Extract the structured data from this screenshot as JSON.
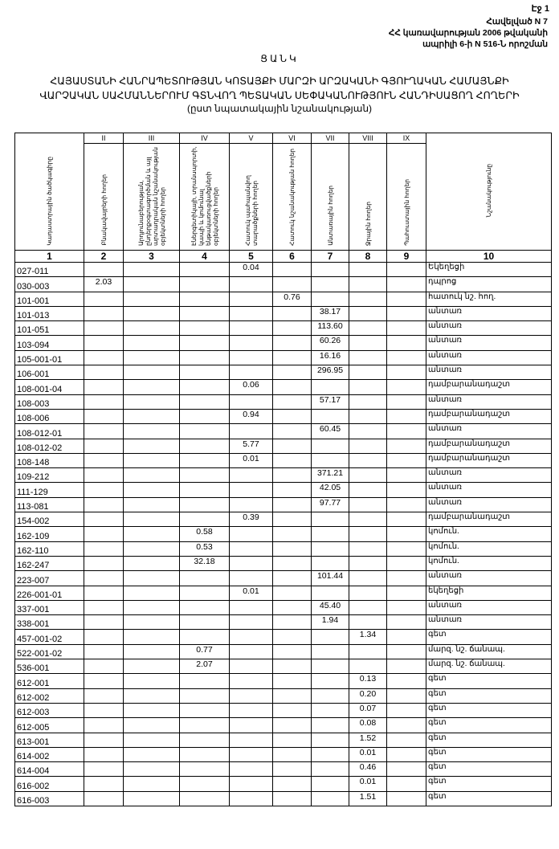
{
  "page_label": "Էջ 1",
  "annex": [
    "Հավելված N 7",
    "ՀՀ կառավարության 2006 թվականի",
    "ապրիլի 6-ի N 516-Ն որոշման"
  ],
  "doc_title": "ՑԱՆԿ",
  "heading": [
    "ՀԱՅԱՍՏԱՆԻ ՀԱՆՐԱՊԵՏՈՒԹՅԱՆ ԿՈՏԱՅՔԻ ՄԱՐԶԻ ԱՐԶԱԿԱՆԻ ԳՅՈՒՂԱԿԱՆ ՀԱՄԱՅՆՔԻ",
    "ՎԱՐՉԱԿԱՆ ՍԱՀՄԱՆՆԵՐՈՒՄ ԳՏՆՎՈՂ ՊԵՏԱԿԱՆ ՍԵՓԱԿԱՆՈՒԹՅՈՒՆ ՀԱՆԴԻՍԱՑՈՂ ՀՈՂԵՐԻ"
  ],
  "subheading": "(ըստ նպատակային նշանակության)",
  "table": {
    "roman": [
      "II",
      "III",
      "IV",
      "V",
      "VI",
      "VII",
      "VIII",
      "IX"
    ],
    "headers": [
      "Կադաստրային ծածկագիրը",
      "Բնակավայրերի հողեր",
      "Արդյունաբերության, ընդերքօգտագործման և այլ արտադրական նշանակության օբյեկտների հողեր",
      "Էներգետիկայի, տրանսպորտի, կապի և կոմունալ ենթակառուցվածքների օբյեկտների հողեր",
      "Հատուկ պահպանվող տարածքների հողեր",
      "Հատուկ նշանակության հողեր",
      "Անտառային հողեր",
      "Ջրային հողեր",
      "Պահուստային հողեր",
      "Նշանակությունը"
    ],
    "numbers": [
      "1",
      "2",
      "3",
      "4",
      "5",
      "6",
      "7",
      "8",
      "9",
      "10"
    ],
    "rows": [
      {
        "code": "027-011",
        "v": [
          "",
          "",
          "",
          "0.04",
          "",
          "",
          "",
          ""
        ],
        "purpose": "Եկեղեցի"
      },
      {
        "code": "030-003",
        "v": [
          "2.03",
          "",
          "",
          "",
          "",
          "",
          "",
          ""
        ],
        "purpose": "դպրոց"
      },
      {
        "code": "101-001",
        "v": [
          "",
          "",
          "",
          "",
          "0.76",
          "",
          "",
          ""
        ],
        "purpose": "հատուկ նշ. հող."
      },
      {
        "code": "101-013",
        "v": [
          "",
          "",
          "",
          "",
          "",
          "38.17",
          "",
          ""
        ],
        "purpose": "անտառ"
      },
      {
        "code": "101-051",
        "v": [
          "",
          "",
          "",
          "",
          "",
          "113.60",
          "",
          ""
        ],
        "purpose": "անտառ"
      },
      {
        "code": "103-094",
        "v": [
          "",
          "",
          "",
          "",
          "",
          "60.26",
          "",
          ""
        ],
        "purpose": "անտառ"
      },
      {
        "code": "105-001-01",
        "v": [
          "",
          "",
          "",
          "",
          "",
          "16.16",
          "",
          ""
        ],
        "purpose": "անտառ"
      },
      {
        "code": "106-001",
        "v": [
          "",
          "",
          "",
          "",
          "",
          "296.95",
          "",
          ""
        ],
        "purpose": "անտառ"
      },
      {
        "code": "108-001-04",
        "v": [
          "",
          "",
          "",
          "0.06",
          "",
          "",
          "",
          ""
        ],
        "purpose": "դամբարանադաշտ"
      },
      {
        "code": "108-003",
        "v": [
          "",
          "",
          "",
          "",
          "",
          "57.17",
          "",
          ""
        ],
        "purpose": "անտառ"
      },
      {
        "code": "108-006",
        "v": [
          "",
          "",
          "",
          "0.94",
          "",
          "",
          "",
          ""
        ],
        "purpose": "դամբարանադաշտ"
      },
      {
        "code": "108-012-01",
        "v": [
          "",
          "",
          "",
          "",
          "",
          "60.45",
          "",
          ""
        ],
        "purpose": "անտառ"
      },
      {
        "code": "108-012-02",
        "v": [
          "",
          "",
          "",
          "5.77",
          "",
          "",
          "",
          ""
        ],
        "purpose": "դամբարանադաշտ"
      },
      {
        "code": "108-148",
        "v": [
          "",
          "",
          "",
          "0.01",
          "",
          "",
          "",
          ""
        ],
        "purpose": "դամբարանադաշտ"
      },
      {
        "code": "109-212",
        "v": [
          "",
          "",
          "",
          "",
          "",
          "371.21",
          "",
          ""
        ],
        "purpose": "անտառ"
      },
      {
        "code": "111-129",
        "v": [
          "",
          "",
          "",
          "",
          "",
          "42.05",
          "",
          ""
        ],
        "purpose": "անտառ"
      },
      {
        "code": "113-081",
        "v": [
          "",
          "",
          "",
          "",
          "",
          "97.77",
          "",
          ""
        ],
        "purpose": "անտառ"
      },
      {
        "code": "154-002",
        "v": [
          "",
          "",
          "",
          "0.39",
          "",
          "",
          "",
          ""
        ],
        "purpose": "դամբարանադաշտ"
      },
      {
        "code": "162-109",
        "v": [
          "",
          "",
          "0.58",
          "",
          "",
          "",
          "",
          ""
        ],
        "purpose": "կոմուն."
      },
      {
        "code": "162-110",
        "v": [
          "",
          "",
          "0.53",
          "",
          "",
          "",
          "",
          ""
        ],
        "purpose": "կոմուն."
      },
      {
        "code": "162-247",
        "v": [
          "",
          "",
          "32.18",
          "",
          "",
          "",
          "",
          ""
        ],
        "purpose": "կոմուն."
      },
      {
        "code": "223-007",
        "v": [
          "",
          "",
          "",
          "",
          "",
          "101.44",
          "",
          ""
        ],
        "purpose": "անտառ"
      },
      {
        "code": "226-001-01",
        "v": [
          "",
          "",
          "",
          "0.01",
          "",
          "",
          "",
          ""
        ],
        "purpose": "եկեղեցի"
      },
      {
        "code": "337-001",
        "v": [
          "",
          "",
          "",
          "",
          "",
          "45.40",
          "",
          ""
        ],
        "purpose": "անտառ"
      },
      {
        "code": "338-001",
        "v": [
          "",
          "",
          "",
          "",
          "",
          "1.94",
          "",
          ""
        ],
        "purpose": "անտառ"
      },
      {
        "code": "457-001-02",
        "v": [
          "",
          "",
          "",
          "",
          "",
          "",
          "1.34",
          ""
        ],
        "purpose": "գետ"
      },
      {
        "code": "522-001-02",
        "v": [
          "",
          "",
          "0.77",
          "",
          "",
          "",
          "",
          ""
        ],
        "purpose": "մարզ. նշ. ճանապ."
      },
      {
        "code": "536-001",
        "v": [
          "",
          "",
          "2.07",
          "",
          "",
          "",
          "",
          ""
        ],
        "purpose": "մարզ. նշ. ճանապ."
      },
      {
        "code": "612-001",
        "v": [
          "",
          "",
          "",
          "",
          "",
          "",
          "0.13",
          ""
        ],
        "purpose": "գետ"
      },
      {
        "code": "612-002",
        "v": [
          "",
          "",
          "",
          "",
          "",
          "",
          "0.20",
          ""
        ],
        "purpose": "գետ"
      },
      {
        "code": "612-003",
        "v": [
          "",
          "",
          "",
          "",
          "",
          "",
          "0.07",
          ""
        ],
        "purpose": "գետ"
      },
      {
        "code": "612-005",
        "v": [
          "",
          "",
          "",
          "",
          "",
          "",
          "0.08",
          ""
        ],
        "purpose": "գետ"
      },
      {
        "code": "613-001",
        "v": [
          "",
          "",
          "",
          "",
          "",
          "",
          "1.52",
          ""
        ],
        "purpose": "գետ"
      },
      {
        "code": "614-002",
        "v": [
          "",
          "",
          "",
          "",
          "",
          "",
          "0.01",
          ""
        ],
        "purpose": "գետ"
      },
      {
        "code": "614-004",
        "v": [
          "",
          "",
          "",
          "",
          "",
          "",
          "0.46",
          ""
        ],
        "purpose": "գետ"
      },
      {
        "code": "616-002",
        "v": [
          "",
          "",
          "",
          "",
          "",
          "",
          "0.01",
          ""
        ],
        "purpose": "գետ"
      },
      {
        "code": "616-003",
        "v": [
          "",
          "",
          "",
          "",
          "",
          "",
          "1.51",
          ""
        ],
        "purpose": "գետ"
      }
    ]
  }
}
